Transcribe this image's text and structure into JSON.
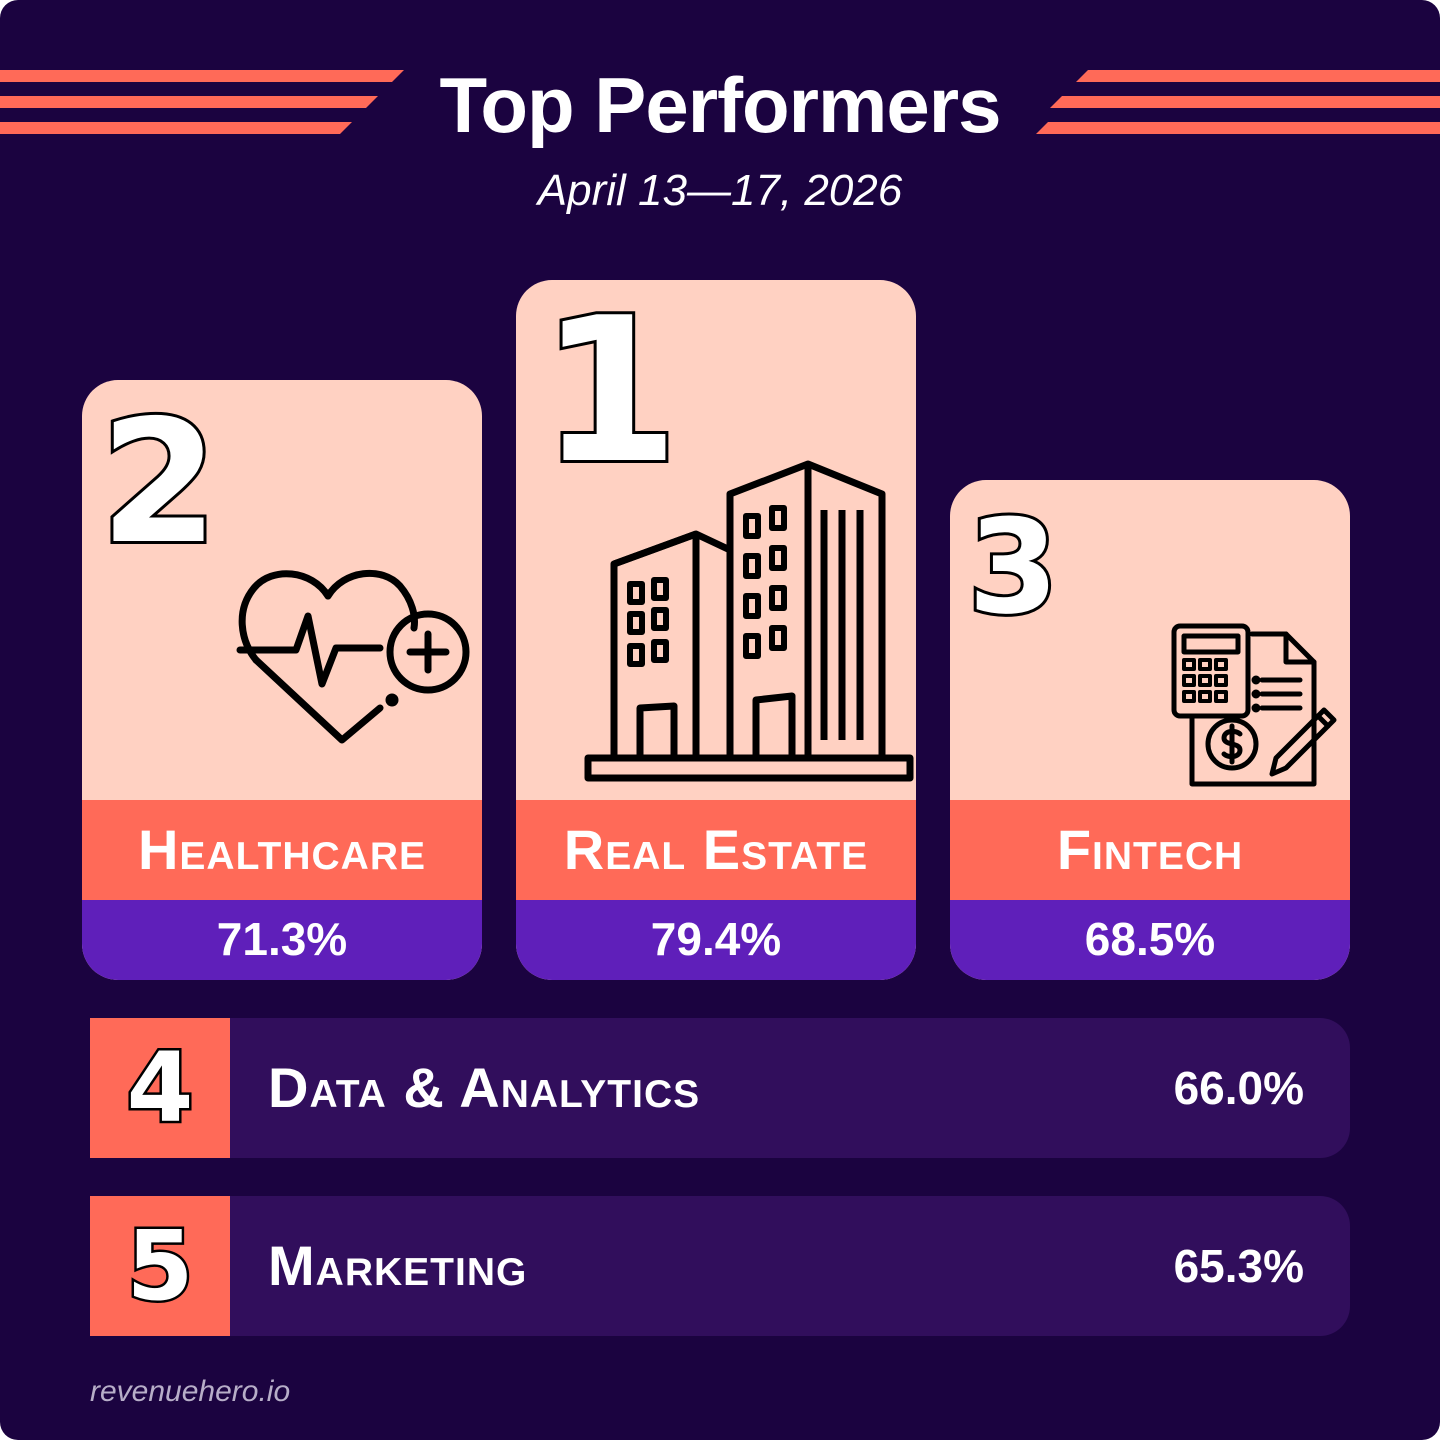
{
  "header": {
    "title": "Top Performers",
    "date_range": "April 13—17, 2026"
  },
  "podium": [
    {
      "rank": "2",
      "category": "Healthcare",
      "value": "71.3%",
      "icon": "heart-pulse-plus-icon"
    },
    {
      "rank": "1",
      "category": "Real Estate",
      "value": "79.4%",
      "icon": "buildings-icon"
    },
    {
      "rank": "3",
      "category": "Fintech",
      "value": "68.5%",
      "icon": "calculator-invoice-icon"
    }
  ],
  "list": [
    {
      "rank": "4",
      "category": "Data & Analytics",
      "value": "66.0%"
    },
    {
      "rank": "5",
      "category": "Marketing",
      "value": "65.3%"
    }
  ],
  "footer": {
    "brand": "revenuehero.io"
  },
  "colors": {
    "background": "#1b0340",
    "card": "#ffd1c2",
    "accent_coral": "#ff6a58",
    "value_purple": "#5f1fba",
    "row_purple": "#310e5c"
  }
}
